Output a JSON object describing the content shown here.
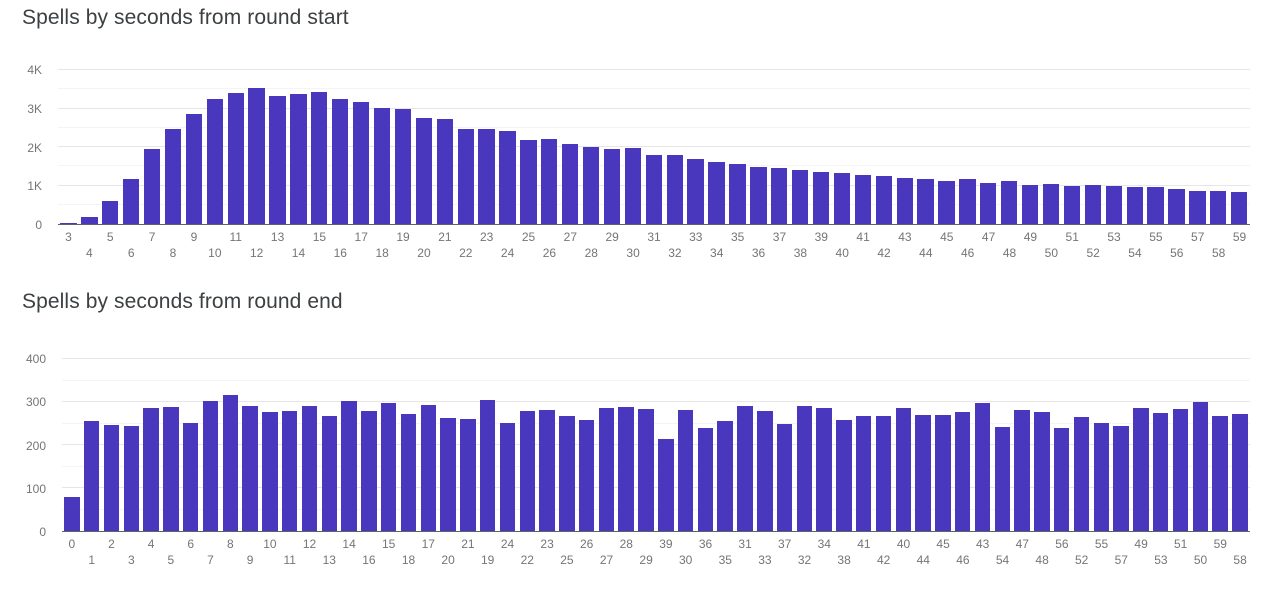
{
  "chart_data": [
    {
      "type": "bar",
      "title": "Spells by seconds from round start",
      "xlabel": "",
      "ylabel": "",
      "legend": "none",
      "grid": true,
      "bar_color": "#4937BE",
      "y_axis": {
        "ticks": [
          "0",
          "1K",
          "2K",
          "3K",
          "4K"
        ],
        "max": 4000
      },
      "categories": [
        "3",
        "4",
        "5",
        "6",
        "7",
        "8",
        "9",
        "10",
        "11",
        "12",
        "13",
        "14",
        "15",
        "16",
        "17",
        "18",
        "19",
        "20",
        "21",
        "22",
        "23",
        "24",
        "25",
        "26",
        "27",
        "28",
        "29",
        "30",
        "31",
        "32",
        "33",
        "34",
        "35",
        "36",
        "37",
        "38",
        "39",
        "40",
        "41",
        "42",
        "43",
        "44",
        "45",
        "46",
        "47",
        "48",
        "49",
        "50",
        "51",
        "52",
        "53",
        "54",
        "55",
        "56",
        "57",
        "58",
        "59"
      ],
      "values": [
        35,
        180,
        595,
        1170,
        1950,
        2480,
        2850,
        3250,
        3400,
        3520,
        3320,
        3370,
        3440,
        3250,
        3170,
        3010,
        2990,
        2750,
        2730,
        2470,
        2460,
        2420,
        2190,
        2220,
        2080,
        2010,
        1950,
        1980,
        1800,
        1790,
        1700,
        1610,
        1560,
        1490,
        1460,
        1410,
        1360,
        1330,
        1280,
        1240,
        1190,
        1170,
        1130,
        1160,
        1060,
        1130,
        1020,
        1040,
        1000,
        1020,
        1000,
        960,
        960,
        910,
        870,
        860,
        830
      ]
    },
    {
      "type": "bar",
      "title": "Spells by seconds from round end",
      "xlabel": "",
      "ylabel": "",
      "legend": "none",
      "grid": true,
      "bar_color": "#4937BE",
      "y_axis": {
        "ticks": [
          "0",
          "100",
          "200",
          "300",
          "400"
        ],
        "max": 400
      },
      "categories": [
        "0",
        "1",
        "2",
        "3",
        "4",
        "5",
        "6",
        "7",
        "8",
        "9",
        "10",
        "11",
        "12",
        "13",
        "14",
        "16",
        "15",
        "18",
        "17",
        "20",
        "21",
        "19",
        "24",
        "22",
        "23",
        "25",
        "26",
        "27",
        "28",
        "29",
        "39",
        "30",
        "36",
        "35",
        "31",
        "33",
        "37",
        "32",
        "34",
        "38",
        "41",
        "42",
        "40",
        "44",
        "45",
        "46",
        "43",
        "54",
        "47",
        "48",
        "56",
        "52",
        "55",
        "57",
        "49",
        "53",
        "51",
        "50",
        "59",
        "58"
      ],
      "values": [
        80,
        255,
        246,
        245,
        286,
        288,
        251,
        303,
        317,
        291,
        276,
        280,
        290,
        268,
        303,
        278,
        297,
        272,
        292,
        262,
        261,
        304,
        251,
        279,
        281,
        267,
        258,
        286,
        289,
        283,
        215,
        282,
        240,
        257,
        291,
        278,
        249,
        290,
        287,
        259,
        268,
        268,
        286,
        270,
        270,
        276,
        297,
        243,
        282,
        276,
        239,
        265,
        251,
        245,
        286,
        274,
        284,
        299,
        268,
        273
      ]
    }
  ]
}
